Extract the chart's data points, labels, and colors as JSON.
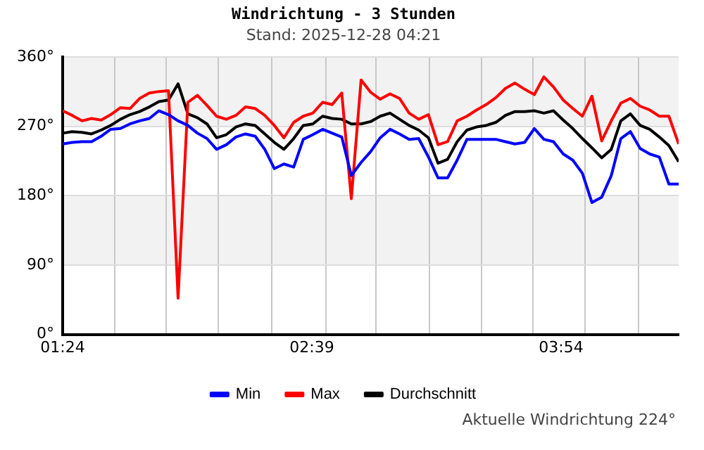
{
  "chart_data": {
    "type": "line",
    "title": "Windrichtung - 3 Stunden",
    "subtitle": "Stand: 2025-12-28 04:21",
    "x": [
      1.4,
      1.448,
      1.497,
      1.545,
      1.593,
      1.641,
      1.69,
      1.738,
      1.786,
      1.835,
      1.883,
      1.931,
      1.979,
      2.028,
      2.076,
      2.124,
      2.172,
      2.221,
      2.269,
      2.317,
      2.366,
      2.414,
      2.462,
      2.51,
      2.559,
      2.607,
      2.655,
      2.704,
      2.752,
      2.8,
      2.848,
      2.897,
      2.945,
      2.993,
      3.042,
      3.09,
      3.138,
      3.186,
      3.235,
      3.283,
      3.331,
      3.379,
      3.428,
      3.476,
      3.524,
      3.573,
      3.621,
      3.669,
      3.717,
      3.766,
      3.814,
      3.862,
      3.911,
      3.959,
      4.007,
      4.055,
      4.104,
      4.152,
      4.2,
      4.248,
      4.297,
      4.345,
      4.393,
      4.441,
      4.49
    ],
    "series": [
      {
        "name": "Min",
        "color": "#0000ff",
        "values": [
          247,
          249,
          250,
          250,
          257,
          266,
          267,
          273,
          277,
          280,
          290,
          285,
          277,
          271,
          261,
          254,
          240,
          246,
          256,
          260,
          257,
          240,
          215,
          221,
          217,
          253,
          259,
          266,
          261,
          256,
          206,
          223,
          237,
          255,
          266,
          260,
          253,
          254,
          230,
          203,
          203,
          226,
          253,
          253,
          253,
          253,
          250,
          247,
          249,
          267,
          253,
          250,
          234,
          226,
          209,
          171,
          178,
          206,
          254,
          263,
          241,
          234,
          230,
          195,
          195
        ]
      },
      {
        "name": "Max",
        "color": "#ff0000",
        "values": [
          290,
          284,
          277,
          280,
          278,
          285,
          294,
          293,
          306,
          313,
          315,
          316,
          47,
          301,
          310,
          297,
          283,
          279,
          284,
          295,
          293,
          284,
          271,
          255,
          275,
          283,
          287,
          301,
          298,
          313,
          176,
          330,
          314,
          305,
          312,
          306,
          287,
          279,
          285,
          246,
          250,
          277,
          283,
          291,
          298,
          307,
          319,
          326,
          318,
          311,
          334,
          321,
          304,
          293,
          283,
          309,
          251,
          277,
          300,
          306,
          296,
          291,
          283,
          283,
          247
        ]
      },
      {
        "name": "Durchschnitt",
        "color": "#000000",
        "values": [
          261,
          263,
          262,
          260,
          265,
          271,
          279,
          285,
          289,
          295,
          302,
          304,
          325,
          286,
          281,
          273,
          255,
          259,
          269,
          273,
          271,
          260,
          249,
          240,
          254,
          271,
          273,
          283,
          280,
          279,
          273,
          273,
          276,
          283,
          287,
          279,
          271,
          265,
          255,
          222,
          227,
          250,
          265,
          269,
          271,
          275,
          284,
          289,
          289,
          290,
          287,
          290,
          278,
          267,
          254,
          242,
          229,
          240,
          277,
          286,
          271,
          266,
          256,
          245,
          224
        ]
      }
    ],
    "xlim": [
      1.4,
      4.49
    ],
    "xticks": [
      {
        "value": 1.4,
        "label": "01:24"
      },
      {
        "value": 1.66,
        "label": null
      },
      {
        "value": 1.92,
        "label": null
      },
      {
        "value": 2.18,
        "label": null
      },
      {
        "value": 2.45,
        "label": null
      },
      {
        "value": 2.65,
        "label": "02:39"
      },
      {
        "value": 2.72,
        "label": null
      },
      {
        "value": 2.97,
        "label": null
      },
      {
        "value": 3.24,
        "label": null
      },
      {
        "value": 3.5,
        "label": null
      },
      {
        "value": 3.76,
        "label": null
      },
      {
        "value": 3.9,
        "label": "03:54"
      },
      {
        "value": 4.02,
        "label": null
      },
      {
        "value": 4.29,
        "label": null
      }
    ],
    "ylim": [
      0,
      360
    ],
    "yticks": [
      {
        "value": 0,
        "label": "0°"
      },
      {
        "value": 90,
        "label": "90°"
      },
      {
        "value": 180,
        "label": "180°"
      },
      {
        "value": 270,
        "label": "270°"
      },
      {
        "value": 360,
        "label": "360°"
      }
    ],
    "bands": [
      {
        "axis": "y",
        "from": 270,
        "to": 360,
        "color": "#f2f2f2"
      },
      {
        "axis": "y",
        "from": 90,
        "to": 180,
        "color": "#f2f2f2"
      }
    ],
    "grid": true,
    "legend": "bottom",
    "marker": "none",
    "line_style": "solid",
    "annotations": [
      "Aktuelle Windrichtung 224°"
    ]
  }
}
